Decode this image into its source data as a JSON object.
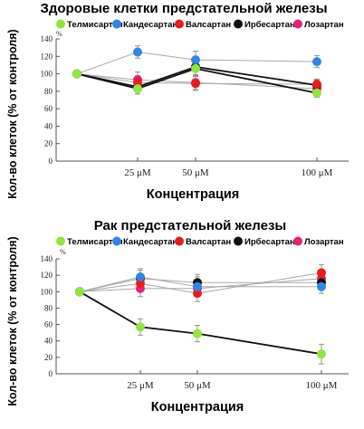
{
  "chart_data": [
    {
      "type": "line",
      "title": "Здоровые клетки предстательной железы",
      "xlabel": "Концентрация",
      "ylabel": "Кол-во клеток (% от контроля)",
      "ylim": [
        0,
        140
      ],
      "yticks": [
        "0",
        "20",
        "40",
        "60",
        "80",
        "100",
        "120",
        "140"
      ],
      "y_unit_symbol": "%",
      "x": [
        0,
        25,
        50,
        100
      ],
      "xtick_labels": [
        "",
        "25 μM",
        "50 μM",
        "100 μM"
      ],
      "legend_placement": "top",
      "series": [
        {
          "name": "Телмисартан",
          "color": "#8ee83a",
          "values": [
            100,
            83,
            106,
            78
          ],
          "errors": [
            0,
            6,
            8,
            5
          ],
          "bold": true
        },
        {
          "name": "Кандесартан",
          "color": "#2f86e8",
          "values": [
            100,
            125,
            116,
            114
          ],
          "errors": [
            0,
            7,
            10,
            7
          ],
          "bold": false
        },
        {
          "name": "Валсартан",
          "color": "#ee1a1a",
          "values": [
            100,
            90,
            89,
            88
          ],
          "errors": [
            0,
            8,
            8,
            6
          ],
          "bold": false
        },
        {
          "name": "Ирбесартан",
          "color": "#111111",
          "values": [
            100,
            85,
            108,
            87
          ],
          "errors": [
            0,
            8,
            9,
            6
          ],
          "bold": true
        },
        {
          "name": "Лозартан",
          "color": "#e8207a",
          "values": [
            100,
            93,
            90,
            83
          ],
          "errors": [
            0,
            9,
            8,
            6
          ],
          "bold": false
        }
      ]
    },
    {
      "type": "line",
      "title": "Рак предстательной железы",
      "xlabel": "Концентрация",
      "ylabel": "Кол-во клеток (% от контроля)",
      "ylim": [
        0,
        140
      ],
      "yticks": [
        "0",
        "20",
        "40",
        "60",
        "80",
        "100",
        "120",
        "140"
      ],
      "y_unit_symbol": "%",
      "x": [
        0,
        25,
        50,
        100
      ],
      "xtick_labels": [
        "",
        "25 μM",
        "50 μM",
        "100 μM"
      ],
      "legend_placement": "top",
      "series": [
        {
          "name": "Телмисартан",
          "color": "#8ee83a",
          "values": [
            100,
            57,
            49,
            24
          ],
          "errors": [
            0,
            10,
            10,
            12
          ],
          "bold": true
        },
        {
          "name": "Кандесартан",
          "color": "#2f86e8",
          "values": [
            100,
            118,
            106,
            106
          ],
          "errors": [
            0,
            10,
            12,
            8
          ],
          "bold": false
        },
        {
          "name": "Валсартан",
          "color": "#ee1a1a",
          "values": [
            100,
            110,
            98,
            123
          ],
          "errors": [
            0,
            10,
            10,
            10
          ],
          "bold": false
        },
        {
          "name": "Ирбесартан",
          "color": "#111111",
          "values": [
            100,
            116,
            111,
            111
          ],
          "errors": [
            0,
            10,
            10,
            8
          ],
          "bold": false
        },
        {
          "name": "Лозартан",
          "color": "#e8207a",
          "values": [
            100,
            104,
            104,
            116
          ],
          "errors": [
            0,
            10,
            10,
            10
          ],
          "bold": false
        }
      ]
    }
  ]
}
